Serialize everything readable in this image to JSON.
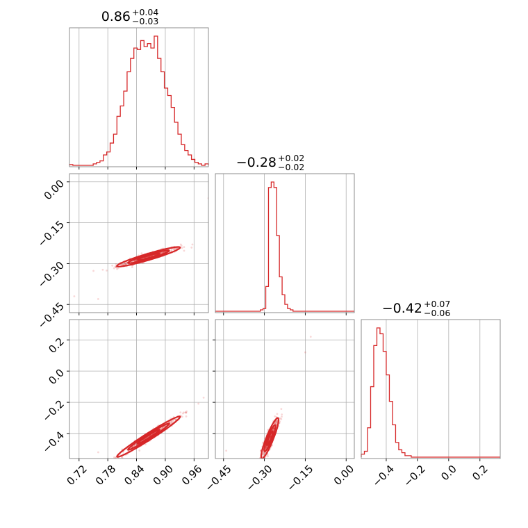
{
  "chart_data": {
    "type": "corner",
    "color": "#d62728",
    "grid": true,
    "parameters": [
      {
        "title": {
          "median": "0.86",
          "plus": "+0.04",
          "minus": "−0.03"
        },
        "range": [
          0.7,
          0.99
        ],
        "ticks": [
          0.72,
          0.78,
          0.84,
          0.9,
          0.96
        ],
        "tick_labels": [
          "0.72",
          "0.78",
          "0.84",
          "0.90",
          "0.96"
        ],
        "hist_bins": [
          0.7,
          0.99
        ],
        "hist": [
          0.5,
          0,
          0,
          0,
          0,
          0,
          0,
          1,
          2,
          3,
          7,
          9,
          15,
          21,
          33,
          40,
          50,
          63,
          72,
          79,
          78,
          84,
          80,
          82,
          79,
          87,
          72,
          63,
          52,
          47,
          39,
          29,
          21,
          14,
          10,
          7,
          4,
          2,
          1,
          0,
          1
        ]
      },
      {
        "title": {
          "median": "−0.28",
          "plus": "+0.02",
          "minus": "−0.02"
        },
        "range": [
          -0.48,
          0.03
        ],
        "ticks": [
          -0.45,
          -0.3,
          -0.15,
          0.0
        ],
        "tick_labels": [
          "−0.45",
          "−0.30",
          "−0.15",
          "0.00"
        ],
        "y_tick_labels": [
          "0.00",
          "−0.15",
          "−0.30",
          "−0.45"
        ],
        "hist_bins": [
          -0.325,
          -0.175
        ],
        "hist": [
          0,
          1,
          2,
          18,
          90,
          94,
          90,
          55,
          25,
          12,
          5,
          2,
          1,
          0,
          0
        ]
      },
      {
        "title": {
          "median": "−0.42",
          "plus": "+0.07",
          "minus": "−0.06"
        },
        "range": [
          -0.56,
          0.33
        ],
        "ticks": [
          -0.4,
          -0.2,
          0.0,
          0.2
        ],
        "tick_labels": [
          "−0.4",
          "−0.2",
          "0.0",
          "0.2"
        ],
        "y_tick_labels": [
          "0.2",
          "0.0",
          "−0.2",
          "−0.4"
        ],
        "hist_bins": [
          -0.56,
          -0.16
        ],
        "hist": [
          2,
          4,
          20,
          48,
          76,
          88,
          84,
          72,
          56,
          38,
          22,
          10,
          5,
          3,
          1,
          1,
          0,
          0,
          0,
          0
        ]
      }
    ]
  }
}
